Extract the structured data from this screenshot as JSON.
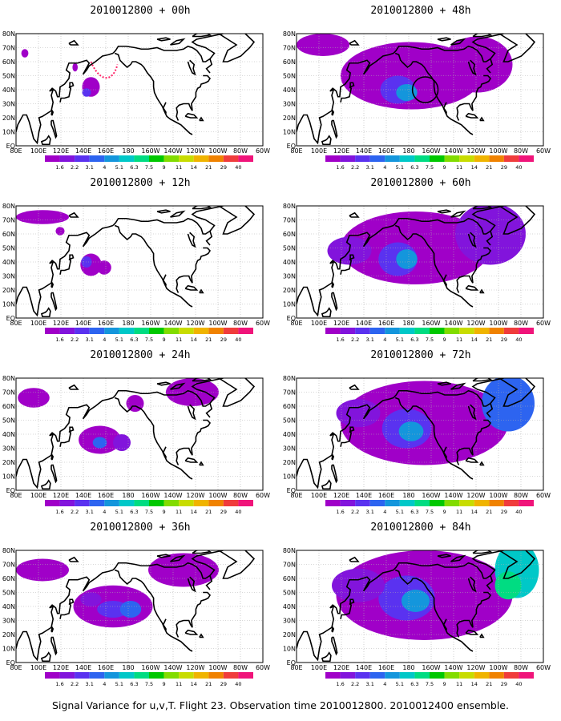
{
  "panels": [
    {
      "title": "2010012800 + 00h",
      "col": 0,
      "row": 0,
      "level": 0
    },
    {
      "title": "2010012800 + 12h",
      "col": 0,
      "row": 1,
      "level": 1
    },
    {
      "title": "2010012800 + 24h",
      "col": 0,
      "row": 2,
      "level": 2
    },
    {
      "title": "2010012800 + 36h",
      "col": 0,
      "row": 3,
      "level": 3
    },
    {
      "title": "2010012800 + 48h",
      "col": 1,
      "row": 0,
      "level": 4
    },
    {
      "title": "2010012800 + 60h",
      "col": 1,
      "row": 1,
      "level": 5
    },
    {
      "title": "2010012800 + 72h",
      "col": 1,
      "row": 2,
      "level": 6
    },
    {
      "title": "2010012800 + 84h",
      "col": 1,
      "row": 3,
      "level": 7
    }
  ],
  "lon_labels": [
    "80E",
    "100E",
    "120E",
    "140E",
    "160E",
    "180",
    "160W",
    "140W",
    "120W",
    "100W",
    "80W",
    "60W"
  ],
  "lat_labels": [
    "EQ",
    "10N",
    "20N",
    "30N",
    "40N",
    "50N",
    "60N",
    "70N",
    "80N"
  ],
  "colorbar": {
    "labels": [
      "1.6",
      "2.2",
      "3.1",
      "4",
      "5.1",
      "6.3",
      "7.5",
      "9",
      "11",
      "14",
      "21",
      "29",
      "40"
    ],
    "colors": [
      "#a000c8",
      "#8214dc",
      "#5a32f0",
      "#2d64f0",
      "#1496dc",
      "#00c8c8",
      "#00dc82",
      "#00c800",
      "#82dc00",
      "#c8dc00",
      "#f0b400",
      "#f08200",
      "#f03c3c",
      "#f0147a"
    ]
  },
  "footer": "Signal Variance for u,v,T. Flight 23. Observation time 2010012800. 2010012400 ensemble."
}
